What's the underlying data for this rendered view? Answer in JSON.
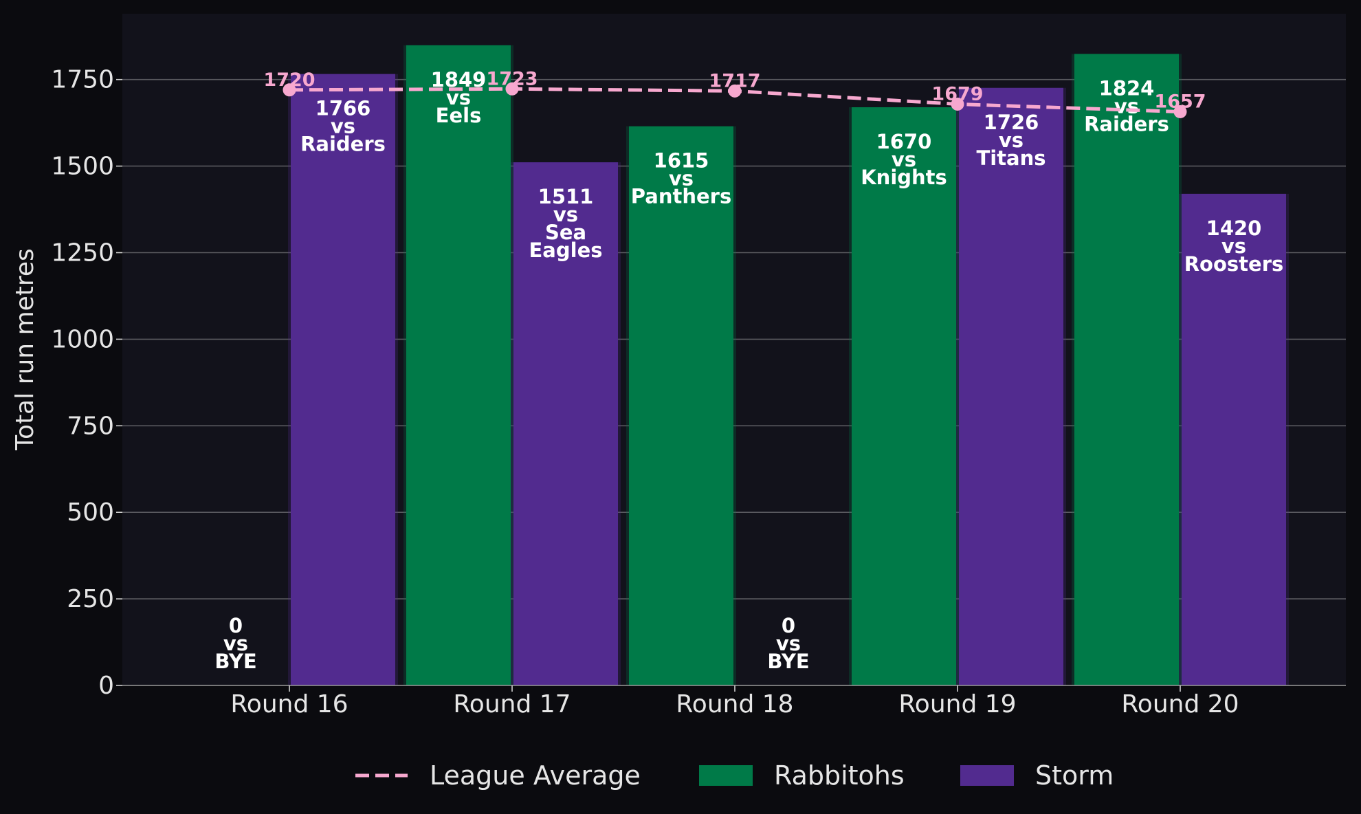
{
  "chart_data": {
    "type": "bar",
    "categories": [
      "Round 16",
      "Round 17",
      "Round 18",
      "Round 19",
      "Round 20"
    ],
    "ylabel": "Total run metres",
    "ylim": [
      0,
      1940
    ],
    "yticks": [
      0,
      250,
      500,
      750,
      1000,
      1250,
      1500,
      1750
    ],
    "grid": true,
    "legend_position": "bottom",
    "series": [
      {
        "name": "Rabbitohs",
        "color": "#007a48",
        "values": [
          0,
          1849,
          1615,
          1670,
          1824
        ],
        "opponents": [
          "BYE",
          "Eels",
          "Panthers",
          "Knights",
          "Raiders"
        ]
      },
      {
        "name": "Storm",
        "color": "#522b8f",
        "values": [
          1766,
          1511,
          0,
          1726,
          1420
        ],
        "opponents": [
          "Raiders",
          "Sea Eagles",
          "BYE",
          "Titans",
          "Roosters"
        ]
      }
    ],
    "line_series": {
      "name": "League Average",
      "color": "#f7a8cf",
      "style": "dashed",
      "values": [
        1720,
        1723,
        1717,
        1679,
        1657
      ]
    },
    "vs_word": "vs"
  }
}
